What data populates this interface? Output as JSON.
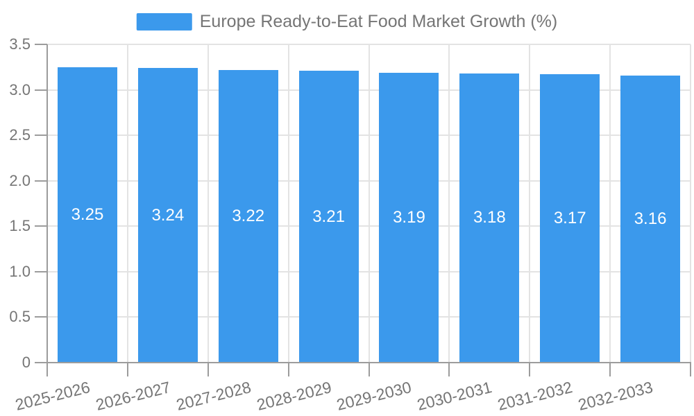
{
  "chart_data": {
    "type": "bar",
    "title": "Europe Ready-to-Eat Food Market Growth (%)",
    "categories": [
      "2025-2026",
      "2026-2027",
      "2027-2028",
      "2028-2029",
      "2029-2030",
      "2030-2031",
      "2031-2032",
      "2032-2033"
    ],
    "values": [
      3.25,
      3.24,
      3.22,
      3.21,
      3.19,
      3.18,
      3.17,
      3.16
    ],
    "value_labels": [
      "3.25",
      "3.24",
      "3.22",
      "3.21",
      "3.19",
      "3.18",
      "3.17",
      "3.16"
    ],
    "xlabel": "",
    "ylabel": "",
    "ylim": [
      0,
      3.5
    ],
    "yticks": [
      "0",
      "0.5",
      "1.0",
      "1.5",
      "2.0",
      "2.5",
      "3.0",
      "3.5"
    ],
    "grid": true,
    "legend_position": "top-center",
    "bar_label_position": "center",
    "x_label_rotation_deg": -14,
    "colors": {
      "bar": "#3B99EC",
      "grid": "#E3E3E3",
      "axis": "#9C9C9C",
      "text": "#757575",
      "bar_label": "#FFFFFF",
      "background": "#FFFFFF"
    }
  }
}
